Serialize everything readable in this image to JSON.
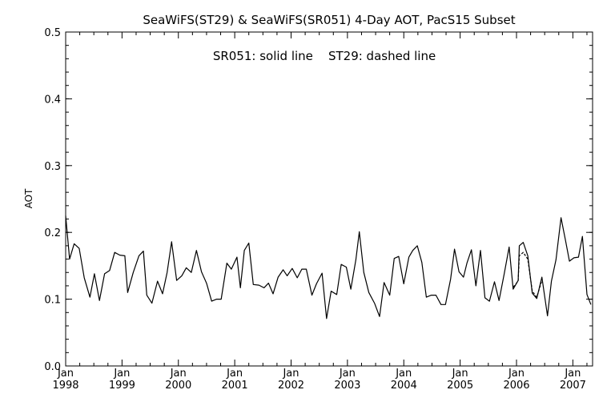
{
  "chart_data": {
    "type": "line",
    "title": "SeaWiFS(ST29) & SeaWiFS(SR051) 4-Day AOT, PacS15 Subset",
    "annotation": "SR051: solid line    ST29: dashed line",
    "ylabel": "AOT",
    "ylim": [
      0.0,
      0.5
    ],
    "xlim": [
      1998.0,
      2007.35
    ],
    "y_ticks": [
      "0.0",
      "0.1",
      "0.2",
      "0.3",
      "0.4",
      "0.5"
    ],
    "x_ticks": [
      {
        "month": "Jan",
        "year": "1998"
      },
      {
        "month": "Jan",
        "year": "1999"
      },
      {
        "month": "Jan",
        "year": "2000"
      },
      {
        "month": "Jan",
        "year": "2001"
      },
      {
        "month": "Jan",
        "year": "2002"
      },
      {
        "month": "Jan",
        "year": "2003"
      },
      {
        "month": "Jan",
        "year": "2004"
      },
      {
        "month": "Jan",
        "year": "2005"
      },
      {
        "month": "Jan",
        "year": "2006"
      },
      {
        "month": "Jan",
        "year": "2007"
      }
    ],
    "series": [
      {
        "style": "solid",
        "points": [
          [
            1998.0,
            0.225
          ],
          [
            1998.07,
            0.16
          ],
          [
            1998.15,
            0.183
          ],
          [
            1998.24,
            0.176
          ],
          [
            1998.33,
            0.132
          ],
          [
            1998.43,
            0.103
          ],
          [
            1998.51,
            0.138
          ],
          [
            1998.6,
            0.098
          ],
          [
            1998.69,
            0.138
          ],
          [
            1998.78,
            0.143
          ],
          [
            1998.87,
            0.17
          ],
          [
            1998.96,
            0.166
          ],
          [
            1999.05,
            0.165
          ],
          [
            1999.1,
            0.11
          ],
          [
            1999.2,
            0.14
          ],
          [
            1999.3,
            0.165
          ],
          [
            1999.38,
            0.172
          ],
          [
            1999.44,
            0.106
          ],
          [
            1999.53,
            0.094
          ],
          [
            1999.63,
            0.127
          ],
          [
            1999.72,
            0.108
          ],
          [
            1999.8,
            0.14
          ],
          [
            1999.88,
            0.186
          ],
          [
            1999.97,
            0.128
          ],
          [
            2000.06,
            0.135
          ],
          [
            2000.14,
            0.147
          ],
          [
            2000.23,
            0.14
          ],
          [
            2000.32,
            0.173
          ],
          [
            2000.41,
            0.141
          ],
          [
            2000.5,
            0.124
          ],
          [
            2000.59,
            0.097
          ],
          [
            2000.68,
            0.1
          ],
          [
            2000.76,
            0.1
          ],
          [
            2000.86,
            0.154
          ],
          [
            2000.94,
            0.145
          ],
          [
            2001.04,
            0.163
          ],
          [
            2001.1,
            0.117
          ],
          [
            2001.17,
            0.173
          ],
          [
            2001.25,
            0.184
          ],
          [
            2001.33,
            0.122
          ],
          [
            2001.43,
            0.121
          ],
          [
            2001.52,
            0.117
          ],
          [
            2001.6,
            0.124
          ],
          [
            2001.68,
            0.108
          ],
          [
            2001.77,
            0.133
          ],
          [
            2001.86,
            0.144
          ],
          [
            2001.93,
            0.135
          ],
          [
            2002.02,
            0.146
          ],
          [
            2002.11,
            0.132
          ],
          [
            2002.19,
            0.145
          ],
          [
            2002.27,
            0.145
          ],
          [
            2002.37,
            0.106
          ],
          [
            2002.45,
            0.123
          ],
          [
            2002.55,
            0.139
          ],
          [
            2002.63,
            0.071
          ],
          [
            2002.71,
            0.112
          ],
          [
            2002.81,
            0.107
          ],
          [
            2002.89,
            0.152
          ],
          [
            2002.98,
            0.148
          ],
          [
            2003.06,
            0.115
          ],
          [
            2003.15,
            0.159
          ],
          [
            2003.21,
            0.201
          ],
          [
            2003.29,
            0.14
          ],
          [
            2003.38,
            0.11
          ],
          [
            2003.48,
            0.094
          ],
          [
            2003.57,
            0.074
          ],
          [
            2003.65,
            0.125
          ],
          [
            2003.75,
            0.106
          ],
          [
            2003.83,
            0.161
          ],
          [
            2003.91,
            0.164
          ],
          [
            2004.0,
            0.123
          ],
          [
            2004.09,
            0.163
          ],
          [
            2004.16,
            0.173
          ],
          [
            2004.24,
            0.18
          ],
          [
            2004.32,
            0.155
          ],
          [
            2004.4,
            0.103
          ],
          [
            2004.49,
            0.106
          ],
          [
            2004.57,
            0.106
          ],
          [
            2004.66,
            0.092
          ],
          [
            2004.74,
            0.092
          ],
          [
            2004.83,
            0.13
          ],
          [
            2004.9,
            0.175
          ],
          [
            2004.98,
            0.141
          ],
          [
            2005.06,
            0.133
          ],
          [
            2005.12,
            0.154
          ],
          [
            2005.2,
            0.174
          ],
          [
            2005.28,
            0.12
          ],
          [
            2005.36,
            0.173
          ],
          [
            2005.44,
            0.102
          ],
          [
            2005.52,
            0.097
          ],
          [
            2005.61,
            0.126
          ],
          [
            2005.69,
            0.098
          ],
          [
            2005.78,
            0.137
          ],
          [
            2005.87,
            0.178
          ],
          [
            2005.94,
            0.115
          ],
          [
            2006.03,
            0.128
          ],
          [
            2006.05,
            0.18
          ],
          [
            2006.12,
            0.185
          ],
          [
            2006.2,
            0.165
          ],
          [
            2006.28,
            0.109
          ],
          [
            2006.36,
            0.101
          ],
          [
            2006.45,
            0.133
          ],
          [
            2006.55,
            0.075
          ],
          [
            2006.62,
            0.127
          ],
          [
            2006.7,
            0.159
          ],
          [
            2006.79,
            0.222
          ],
          [
            2006.87,
            0.188
          ],
          [
            2006.94,
            0.157
          ],
          [
            2007.02,
            0.162
          ],
          [
            2007.1,
            0.163
          ],
          [
            2007.17,
            0.194
          ],
          [
            2007.25,
            0.107
          ],
          [
            2007.32,
            0.092
          ]
        ]
      },
      {
        "style": "dashed",
        "points": [
          [
            2005.94,
            0.118
          ],
          [
            2006.0,
            0.124
          ],
          [
            2006.03,
            0.128
          ],
          [
            2006.05,
            0.165
          ],
          [
            2006.12,
            0.17
          ],
          [
            2006.2,
            0.16
          ],
          [
            2006.28,
            0.112
          ],
          [
            2006.36,
            0.103
          ],
          [
            2006.45,
            0.128
          ]
        ]
      }
    ]
  }
}
